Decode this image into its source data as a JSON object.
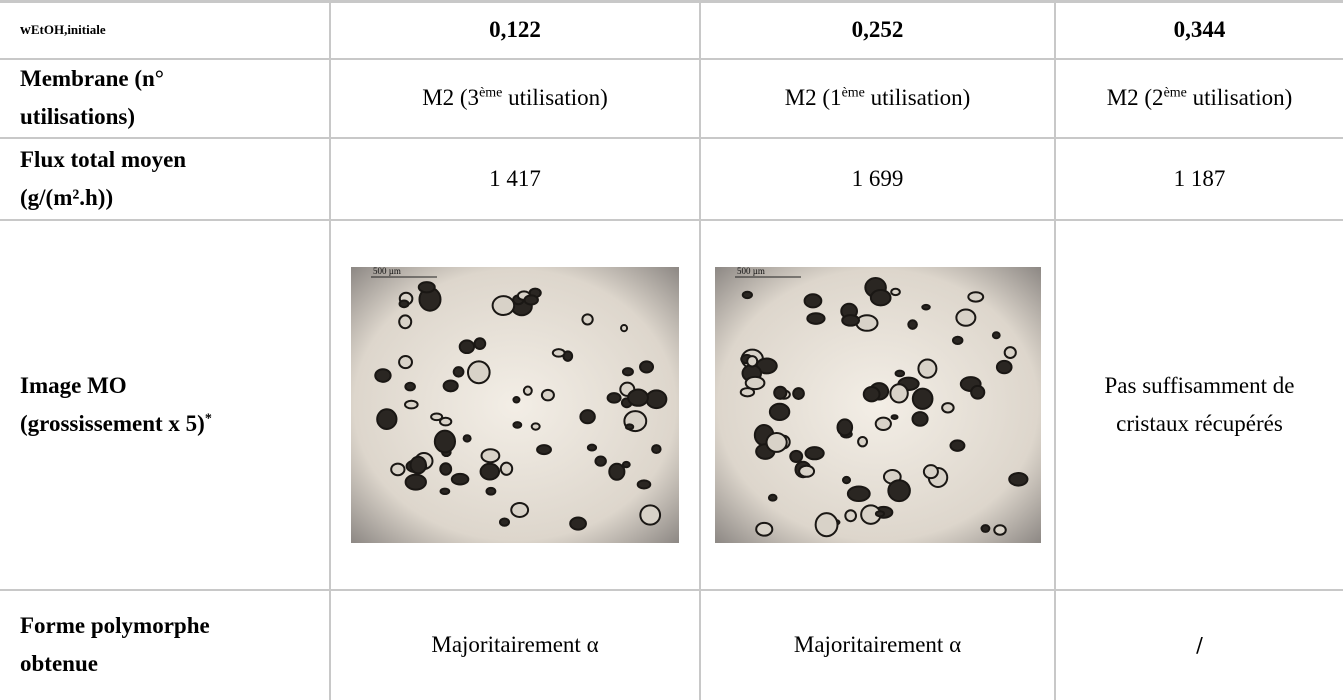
{
  "table": {
    "header": {
      "label_main": "w",
      "label_sub": "EtOH,initiale",
      "values": [
        "0,122",
        "0,252",
        "0,344"
      ]
    },
    "rows": [
      {
        "label": [
          "Membrane (n°",
          "utilisations)"
        ],
        "cells": [
          {
            "base": "M2 (3",
            "sup": "ème",
            "rest": " utilisation)"
          },
          {
            "base": "M2 (1",
            "sup": "ème",
            "rest": " utilisation)"
          },
          {
            "base": "M2 (2",
            "sup": "ème",
            "rest": " utilisation)"
          }
        ]
      },
      {
        "label": [
          "Flux total moyen",
          "(g/(m².h))"
        ],
        "cells": [
          "1 417",
          "1 699",
          "1 187"
        ]
      },
      {
        "label": [
          "Image MO",
          "(grossissement x 5)"
        ],
        "label_sup": "*",
        "scale_bars": [
          "500 µm",
          "500 µm"
        ],
        "note": [
          "Pas suffisamment de",
          "cristaux récupérés"
        ]
      },
      {
        "label": [
          "Forme polymorphe",
          "obtenue"
        ],
        "cells": [
          "Majoritairement α",
          "Majoritairement α",
          "/"
        ]
      }
    ]
  }
}
